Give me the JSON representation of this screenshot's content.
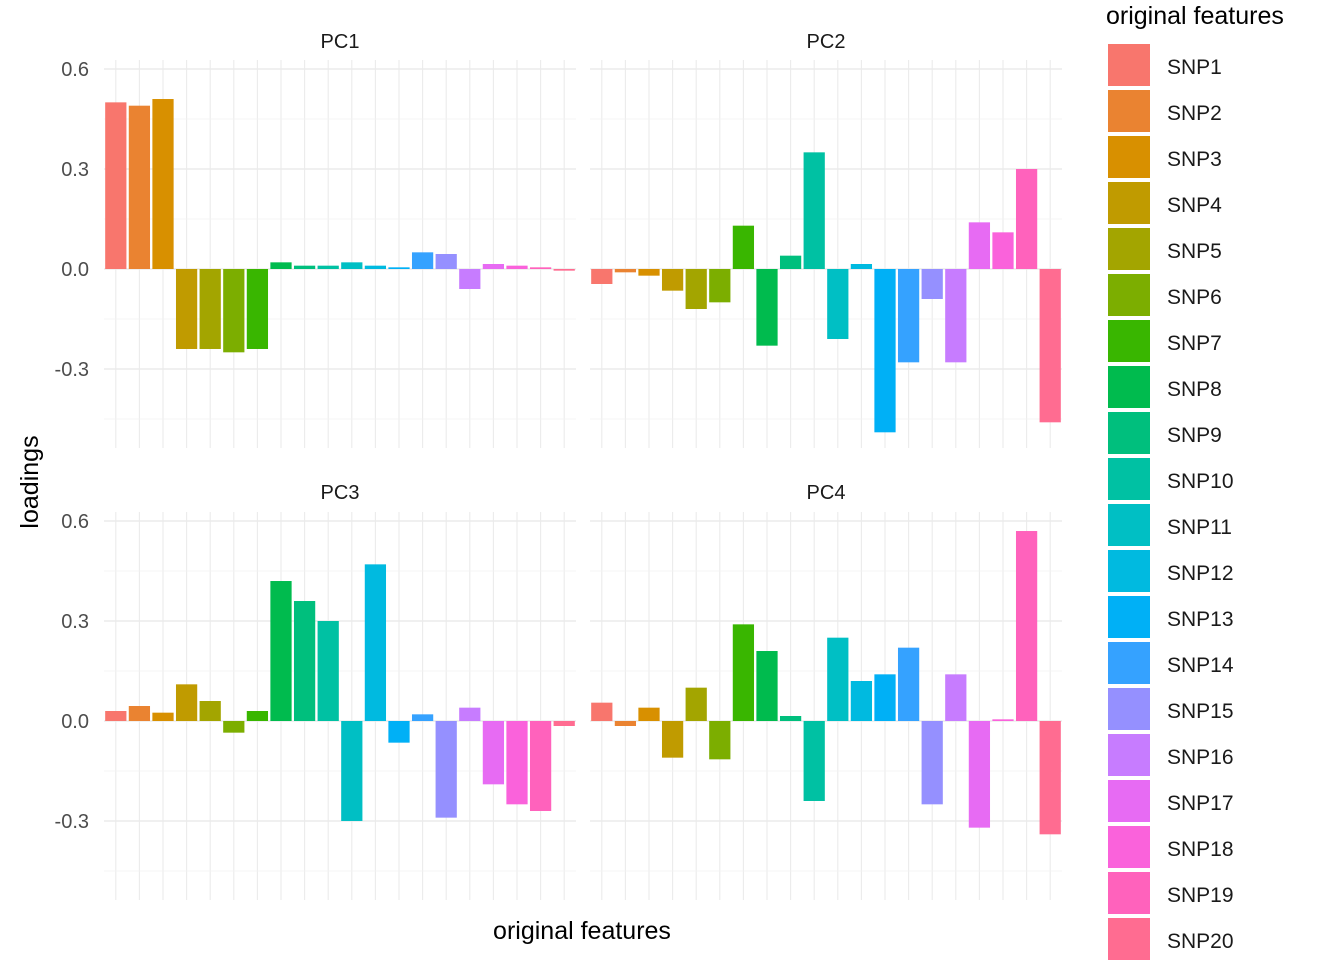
{
  "chart_data": {
    "type": "bar",
    "xlabel": "original features",
    "ylabel": "loadings",
    "ylim": [
      -0.5,
      0.63
    ],
    "y_ticks": [
      -0.3,
      0.0,
      0.3,
      0.6
    ],
    "y_tick_labels": [
      "-0.3",
      "0.0",
      "0.3",
      "0.6"
    ],
    "grid": true,
    "legend_position": "right",
    "legend_title": "original features",
    "categories": [
      "SNP1",
      "SNP2",
      "SNP3",
      "SNP4",
      "SNP5",
      "SNP6",
      "SNP7",
      "SNP8",
      "SNP9",
      "SNP10",
      "SNP11",
      "SNP12",
      "SNP13",
      "SNP14",
      "SNP15",
      "SNP16",
      "SNP17",
      "SNP18",
      "SNP19",
      "SNP20"
    ],
    "colors": [
      "#F8766D",
      "#EA8331",
      "#D89000",
      "#C09B00",
      "#A3A500",
      "#7CAE00",
      "#39B600",
      "#00BB4E",
      "#00BF7D",
      "#00C1A3",
      "#00BFC4",
      "#00BAE0",
      "#00B0F6",
      "#35A2FF",
      "#9590FF",
      "#C77CFF",
      "#E76BF3",
      "#FA62DB",
      "#FF62BC",
      "#FF6C91"
    ],
    "panels": [
      {
        "name": "PC1",
        "values": [
          0.5,
          0.49,
          0.51,
          -0.24,
          -0.24,
          -0.25,
          -0.24,
          0.02,
          0.01,
          0.01,
          0.02,
          0.01,
          0.005,
          0.05,
          0.045,
          -0.06,
          0.015,
          0.01,
          0.005,
          -0.005
        ]
      },
      {
        "name": "PC2",
        "values": [
          -0.045,
          -0.01,
          -0.02,
          -0.065,
          -0.12,
          -0.1,
          0.13,
          -0.23,
          0.04,
          0.35,
          -0.21,
          0.015,
          -0.49,
          -0.28,
          -0.09,
          -0.28,
          0.14,
          0.11,
          0.3,
          -0.46
        ]
      },
      {
        "name": "PC3",
        "values": [
          0.03,
          0.045,
          0.025,
          0.11,
          0.06,
          -0.035,
          0.03,
          0.42,
          0.36,
          0.3,
          -0.3,
          0.47,
          -0.065,
          0.02,
          -0.29,
          0.04,
          -0.19,
          -0.25,
          -0.27,
          -0.015
        ]
      },
      {
        "name": "PC4",
        "values": [
          0.055,
          -0.015,
          0.04,
          -0.11,
          0.1,
          -0.115,
          0.29,
          0.21,
          0.015,
          -0.24,
          0.25,
          0.12,
          0.14,
          0.22,
          -0.25,
          0.14,
          -0.32,
          0.005,
          0.57,
          -0.34
        ]
      }
    ]
  }
}
